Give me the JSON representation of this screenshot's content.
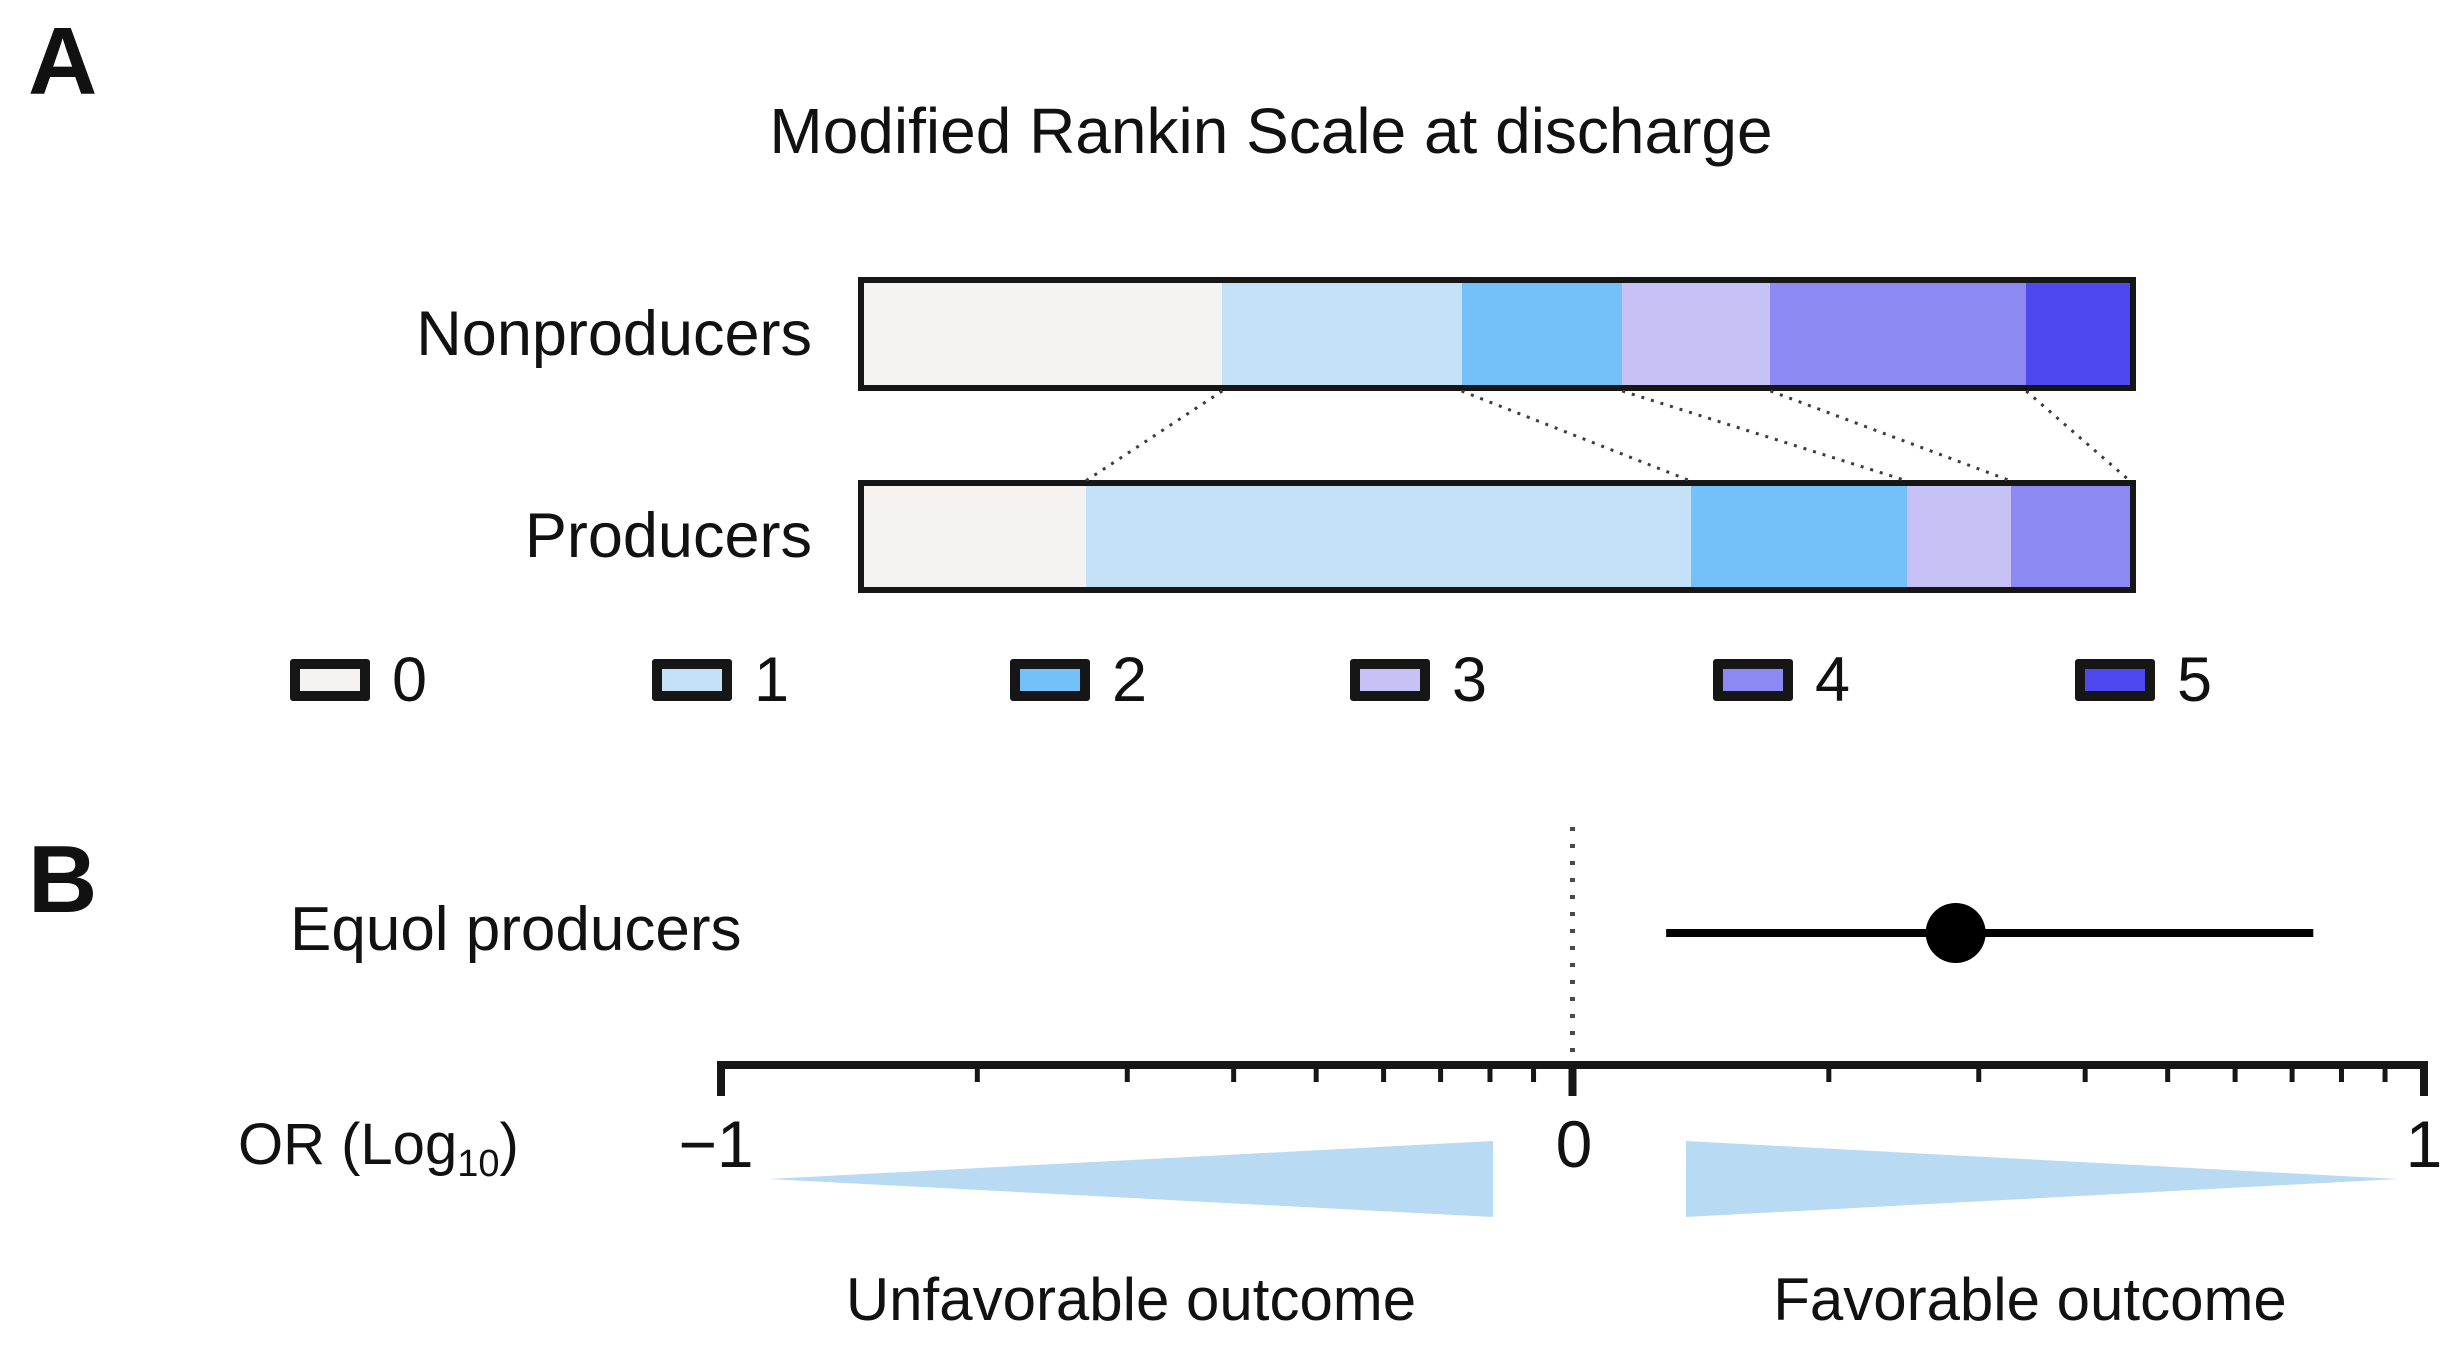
{
  "panelA": {
    "label": "A",
    "title": "Modified Rankin Scale at discharge",
    "rows": [
      "Nonproducers",
      "Producers"
    ],
    "legend": [
      {
        "label": "0",
        "color": "#f4f3f1"
      },
      {
        "label": "1",
        "color": "#c5e1f7"
      },
      {
        "label": "2",
        "color": "#74c0f8"
      },
      {
        "label": "3",
        "color": "#c6c2f6"
      },
      {
        "label": "4",
        "color": "#8c89f2"
      },
      {
        "label": "5",
        "color": "#4d49ef"
      }
    ]
  },
  "panelB": {
    "label": "B",
    "row_label": "Equol producers",
    "axis_label_pre": "OR (Log",
    "axis_label_sub": "10",
    "axis_label_post": ")",
    "tick_labels": [
      "−1",
      "0",
      "1"
    ],
    "unfavorable_label": "Unfavorable outcome",
    "favorable_label": "Favorable outcome",
    "arrow_color": "#b9daf3",
    "line_color": "#161616"
  },
  "chart_data": [
    {
      "type": "bar",
      "variant": "stacked-horizontal-100pct",
      "title": "Modified Rankin Scale at discharge",
      "categories": [
        "Nonproducers",
        "Producers"
      ],
      "stack_labels": [
        "0",
        "1",
        "2",
        "3",
        "4",
        "5"
      ],
      "series": [
        {
          "name": "Nonproducers",
          "values": [
            28.3,
            18.9,
            12.7,
            11.7,
            20.2,
            8.2
          ]
        },
        {
          "name": "Producers",
          "values": [
            17.5,
            47.8,
            17.1,
            8.2,
            9.4,
            0
          ]
        }
      ],
      "colors": [
        "#f4f3f1",
        "#c5e1f7",
        "#74c0f8",
        "#c6c2f6",
        "#8c89f2",
        "#4d49ef"
      ],
      "legend_position": "bottom",
      "connectors_between_bars": true
    },
    {
      "type": "scatter",
      "variant": "forest-plot",
      "rows": [
        {
          "label": "Equol producers",
          "estimate": 0.45,
          "ci_low": 0.11,
          "ci_high": 0.87
        }
      ],
      "xlabel": "OR (Log10)",
      "xlim": [
        -1,
        1
      ],
      "major_ticks": [
        -1,
        0,
        1
      ],
      "tick_labels": [
        "−1",
        "0",
        "1"
      ],
      "minor_ticks": "log10 subdivisions (log10 2..9 offsets from each decade)",
      "reference_line_x": 0,
      "annotations": [
        {
          "text": "Unfavorable outcome",
          "side": "left"
        },
        {
          "text": "Favorable outcome",
          "side": "right"
        }
      ]
    }
  ]
}
